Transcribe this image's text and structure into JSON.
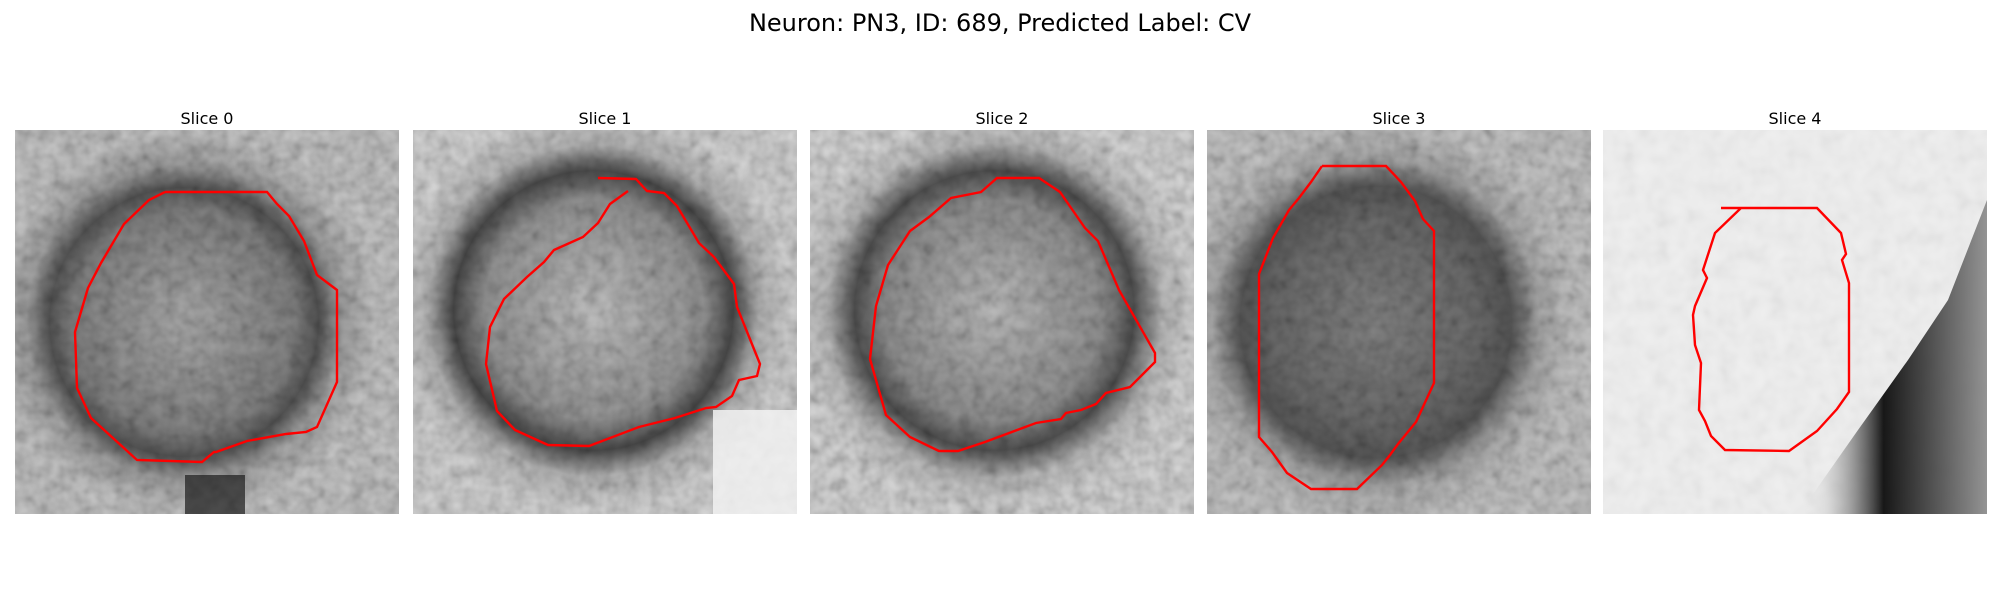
{
  "figure": {
    "title": "Neuron: PN3, ID: 689, Predicted Label: CV",
    "outline_color": "#ff0000",
    "panels": [
      {
        "title": "Slice 0"
      },
      {
        "title": "Slice 1"
      },
      {
        "title": "Slice 2"
      },
      {
        "title": "Slice 3"
      },
      {
        "title": "Slice 4"
      }
    ]
  }
}
